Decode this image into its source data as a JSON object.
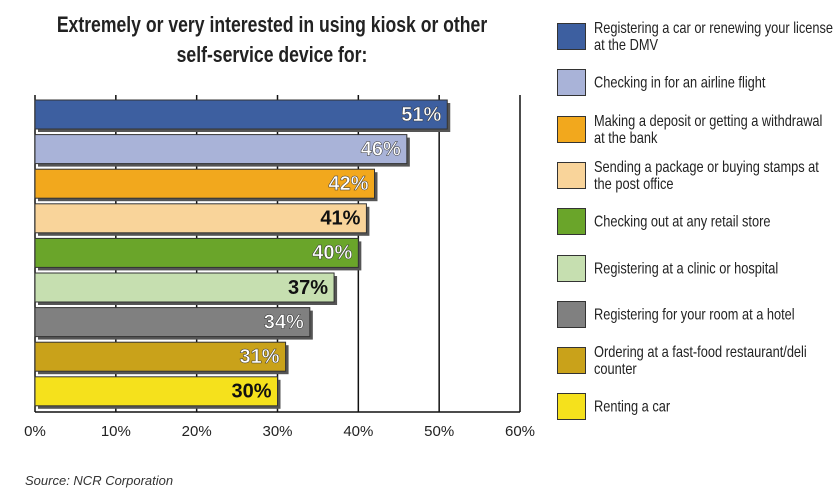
{
  "chart_data": {
    "type": "bar",
    "orientation": "horizontal",
    "title": "Extremely or very interested in using kiosk or other self-service device for:",
    "categories": [
      "Registering a car or renewing your license at the DMV",
      "Checking in for an airline flight",
      "Making a deposit or getting a withdrawal at the bank",
      "Sending a package or buying stamps at the post office",
      "Checking out at any retail store",
      "Registering at a clinic or hospital",
      "Registering for your room at a hotel",
      "Ordering at a fast-food restaurant/deli counter",
      "Renting a car"
    ],
    "values": [
      51,
      46,
      42,
      41,
      40,
      37,
      34,
      31,
      30
    ],
    "value_labels": [
      "51%",
      "46%",
      "42%",
      "41%",
      "40%",
      "37%",
      "34%",
      "31%",
      "30%"
    ],
    "colors": [
      "#3d5fa0",
      "#a9b3d8",
      "#f2a81d",
      "#f9d49a",
      "#6aa52a",
      "#c6dfb0",
      "#808080",
      "#c9a21a",
      "#f5e11c"
    ],
    "xlim": [
      0,
      60
    ],
    "xticks": [
      {
        "value": 0,
        "label": "0%"
      },
      {
        "value": 10,
        "label": "10%"
      },
      {
        "value": 20,
        "label": "20%"
      },
      {
        "value": 30,
        "label": "30%"
      },
      {
        "value": 40,
        "label": "40%"
      },
      {
        "value": 50,
        "label": "50%"
      },
      {
        "value": 60,
        "label": "60%"
      }
    ],
    "grid": true,
    "legend": "right",
    "source": "Source: NCR Corporation"
  }
}
